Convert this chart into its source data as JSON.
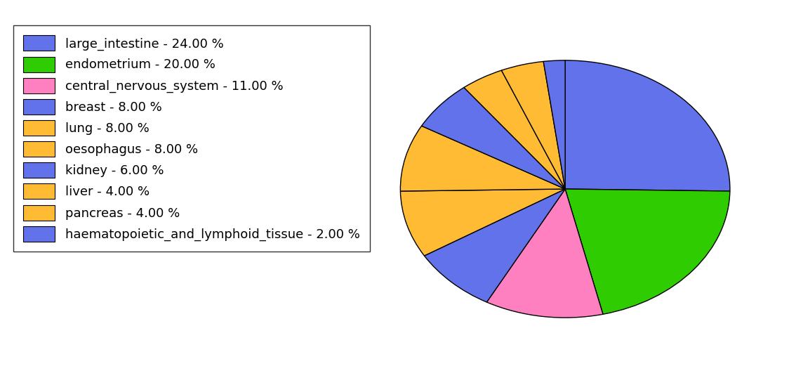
{
  "labels": [
    "large_intestine - 24.00 %",
    "endometrium - 20.00 %",
    "central_nervous_system - 11.00 %",
    "breast - 8.00 %",
    "lung - 8.00 %",
    "oesophagus - 8.00 %",
    "kidney - 6.00 %",
    "liver - 4.00 %",
    "pancreas - 4.00 %",
    "haematopoietic_and_lymphoid_tissue - 2.00 %"
  ],
  "values": [
    24,
    20,
    11,
    8,
    8,
    8,
    6,
    4,
    4,
    2
  ],
  "colors": [
    "#6272EA",
    "#2ECC00",
    "#FF80C0",
    "#6272EA",
    "#FFBB33",
    "#FFBB33",
    "#6272EA",
    "#FFBB33",
    "#FFBB33",
    "#6272EA"
  ],
  "startangle": 90,
  "background_color": "#ffffff",
  "legend_fontsize": 13,
  "figsize": [
    11.34,
    5.38
  ],
  "dpi": 100
}
